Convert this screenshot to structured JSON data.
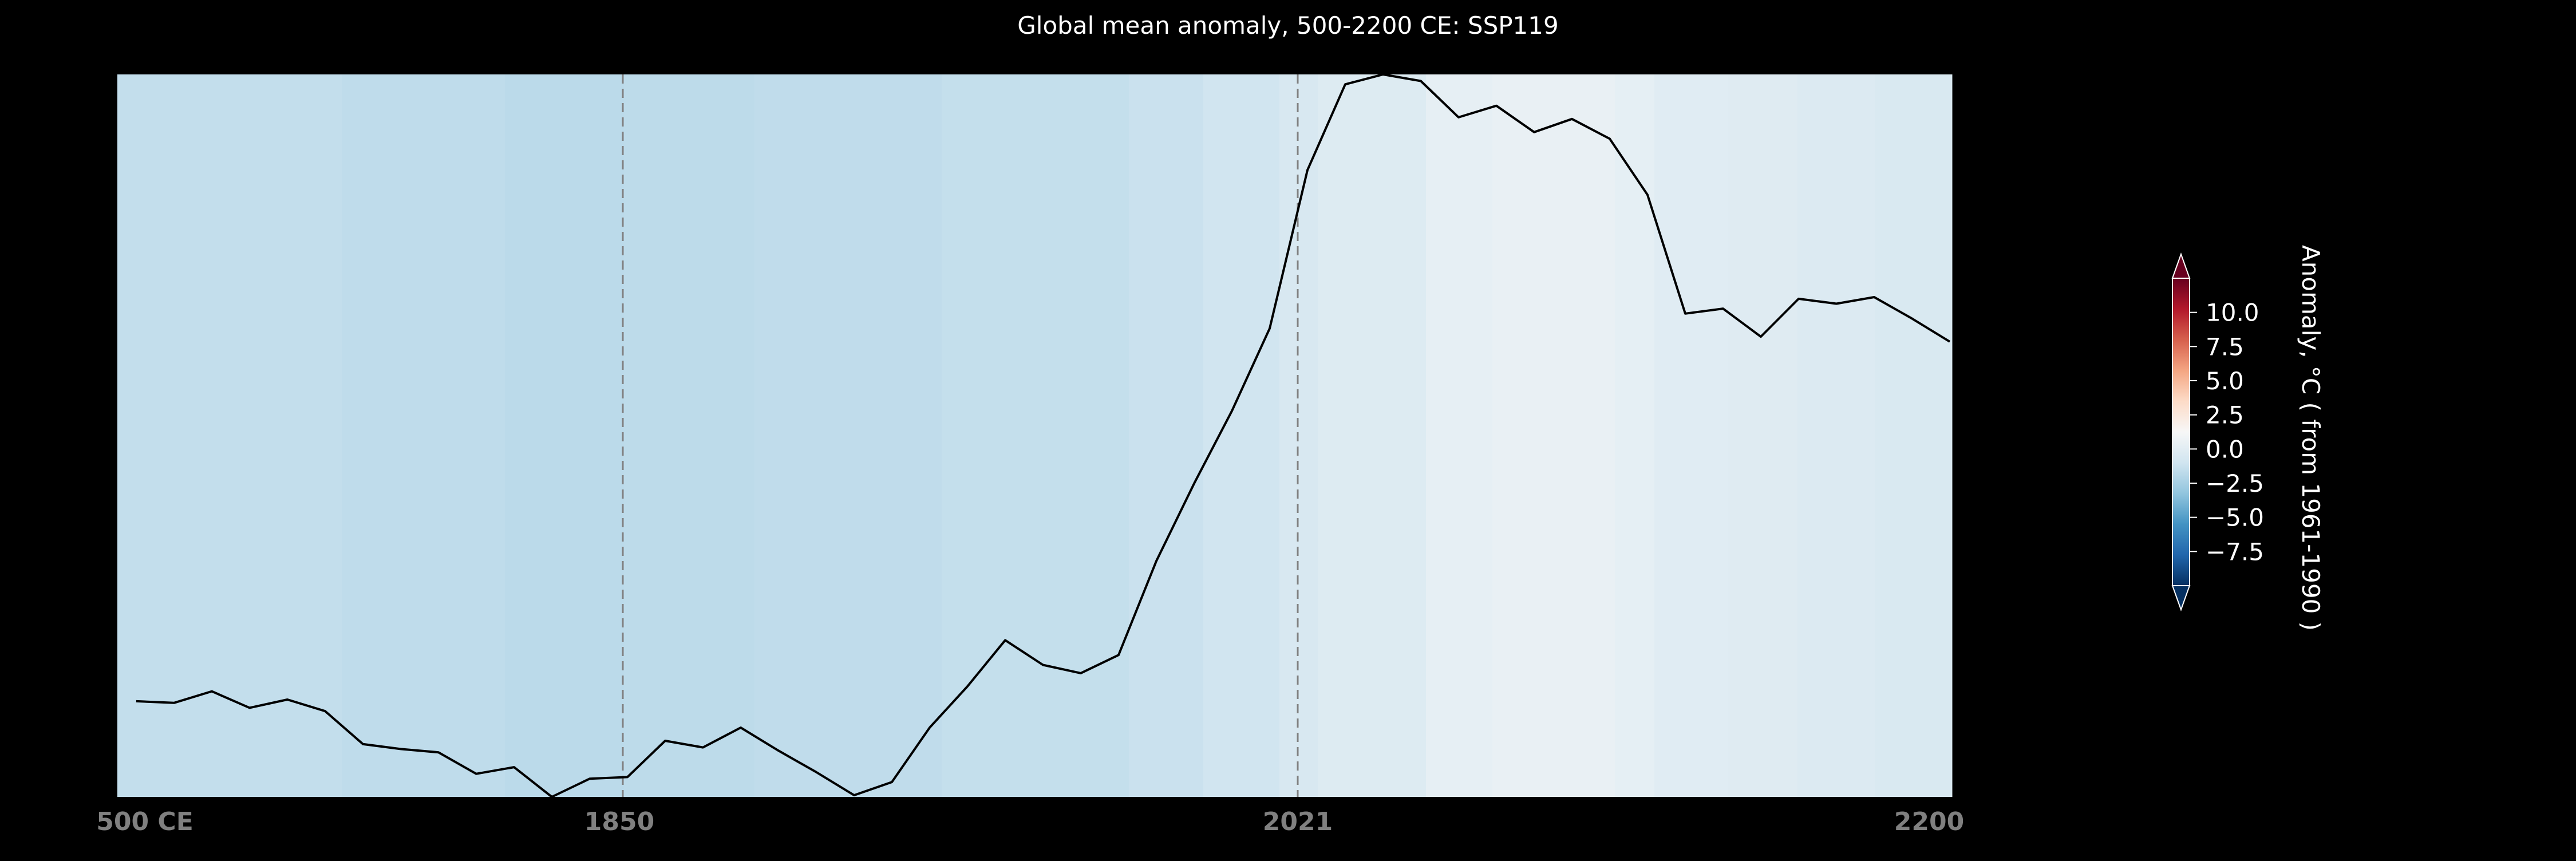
{
  "chart_data": {
    "type": "line",
    "title": "Global mean anomaly, 500-2200 CE: SSP119",
    "x_tick_labels": [
      "500 CE",
      "1850",
      "2021",
      "2200"
    ],
    "y_ticks_shown": false,
    "reference_lines": [
      "1850",
      "2021"
    ],
    "reference_line_style": "dashed",
    "series": [
      {
        "values": [
          -6.2,
          -6.25,
          -5.9,
          -6.4,
          -6.15,
          -6.5,
          -7.5,
          -7.65,
          -7.75,
          -8.4,
          -8.2,
          -9.1,
          -8.55,
          -8.5,
          -7.4,
          -7.6,
          -7.0,
          -7.7,
          -8.35,
          -9.05,
          -8.65,
          -7.0,
          -5.75,
          -4.35,
          -5.1,
          -5.35,
          -4.8,
          -1.95,
          0.4,
          2.6,
          5.1,
          9.9,
          12.5,
          12.8,
          12.6,
          11.5,
          11.85,
          11.05,
          11.45,
          10.85,
          9.15,
          5.55,
          5.7,
          4.85,
          6.0,
          5.85,
          6.05,
          5.4,
          4.7
        ],
        "color": "#000000"
      }
    ],
    "background_anomaly_bands": [
      -1.5,
      -1.65,
      -1.8,
      -1.7,
      -1.6,
      -1.45,
      -1.25,
      -1.0,
      -0.6,
      -0.3,
      0.25,
      0.4,
      0.2,
      -0.1,
      -0.2,
      -0.35,
      -0.55
    ],
    "colorbar": {
      "label": "Anomaly, °C ( from 1961-1990 )",
      "ticks": [
        "10.0",
        "7.5",
        "5.0",
        "2.5",
        "0.0",
        "−2.5",
        "−5.0",
        "−7.5"
      ],
      "tick_values": [
        10.0,
        7.5,
        5.0,
        2.5,
        0.0,
        -2.5,
        -5.0,
        -7.5
      ],
      "range": [
        -10,
        12.5
      ],
      "cmap": "RdBu_r",
      "extend": "both"
    }
  }
}
